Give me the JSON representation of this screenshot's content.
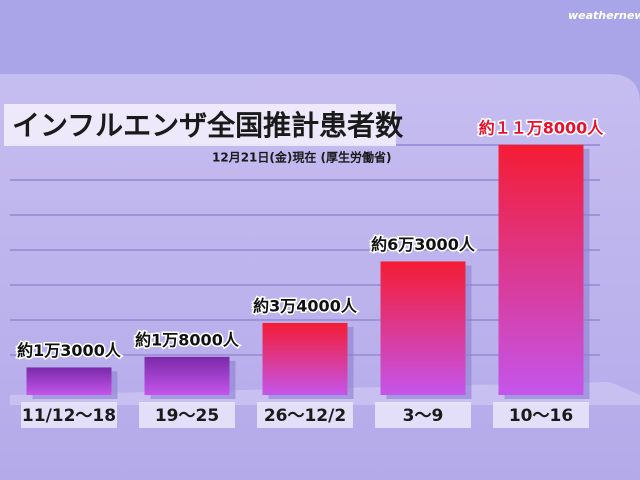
{
  "chart_data": {
    "type": "bar",
    "title": "インフルエンザ全国推計患者数",
    "subtitle": "12月21日(金)現在 (厚生労働省)",
    "logo": "weathernews",
    "categories": [
      "11/12～18",
      "19～25",
      "26～12/2",
      "3～9",
      "10～16"
    ],
    "values": [
      13000,
      18000,
      34000,
      63000,
      118000
    ],
    "value_labels": [
      "約1万3000人",
      "約1万8000人",
      "約3万4000人",
      "約6万3000人",
      "約１１万8000人"
    ],
    "colors": [
      "#7a2aa8",
      "#7a2aa8",
      "#f41c34",
      "#f41c34",
      "#f41c34"
    ],
    "value_label_colors": [
      "#111111",
      "#111111",
      "#111111",
      "#111111",
      "#e8102a"
    ],
    "ylim": [
      0,
      125000
    ]
  }
}
